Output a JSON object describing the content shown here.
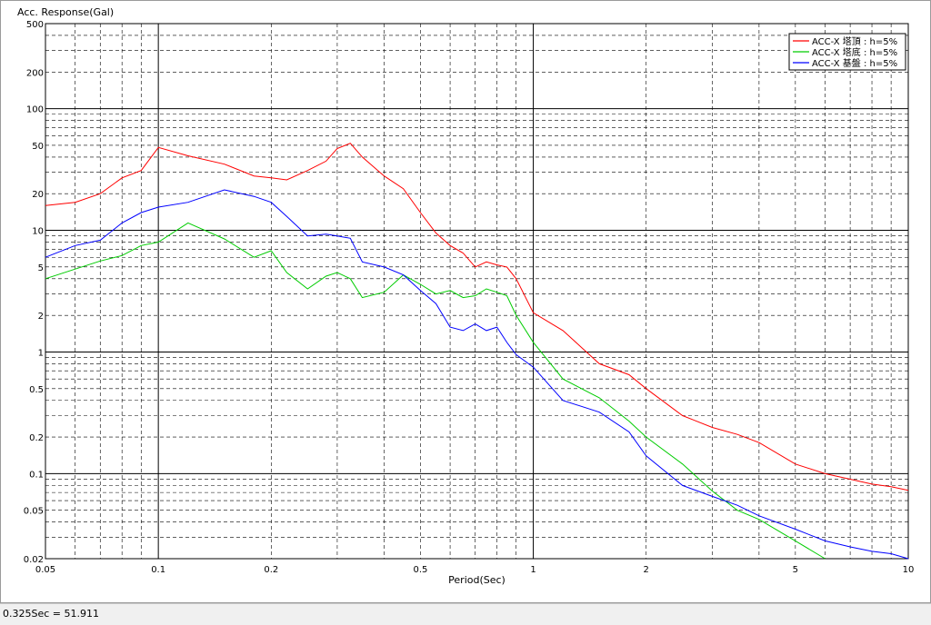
{
  "status_bar": {
    "text": "0.325Sec = 51.911"
  },
  "colors": {
    "grid": "#000000",
    "plot_bg": "#ffffff"
  },
  "chart_data": {
    "type": "line",
    "title": "",
    "xlabel": "Period(Sec)",
    "ylabel": "Acc. Response(Gal)",
    "x_scale": "log",
    "y_scale": "log",
    "xlim": [
      0.05,
      10
    ],
    "ylim": [
      0.02,
      500
    ],
    "x_ticks": [
      {
        "value": 0.05,
        "label": "0.05"
      },
      {
        "value": 0.1,
        "label": "0.1"
      },
      {
        "value": 0.2,
        "label": "0.2"
      },
      {
        "value": 0.5,
        "label": "0.5"
      },
      {
        "value": 1,
        "label": "1"
      },
      {
        "value": 2,
        "label": "2"
      },
      {
        "value": 5,
        "label": "5"
      },
      {
        "value": 10,
        "label": "10"
      }
    ],
    "y_ticks": [
      {
        "value": 500,
        "label": "500"
      },
      {
        "value": 200,
        "label": "200"
      },
      {
        "value": 100,
        "label": "100"
      },
      {
        "value": 50,
        "label": "50"
      },
      {
        "value": 20,
        "label": "20"
      },
      {
        "value": 10,
        "label": "10"
      },
      {
        "value": 5,
        "label": "5"
      },
      {
        "value": 2,
        "label": "2"
      },
      {
        "value": 1,
        "label": "1"
      },
      {
        "value": 0.5,
        "label": "0.5"
      },
      {
        "value": 0.2,
        "label": "0.2"
      },
      {
        "value": 0.1,
        "label": "0.1"
      },
      {
        "value": 0.05,
        "label": "0.05"
      },
      {
        "value": 0.02,
        "label": "0.02"
      }
    ],
    "grid": true,
    "legend_position": "top-right",
    "series": [
      {
        "name": "ACC-X 塔頂 : h=5%",
        "color": "#ff0000",
        "x": [
          0.05,
          0.06,
          0.07,
          0.08,
          0.09,
          0.1,
          0.12,
          0.15,
          0.18,
          0.2,
          0.22,
          0.25,
          0.28,
          0.3,
          0.325,
          0.35,
          0.4,
          0.45,
          0.5,
          0.55,
          0.6,
          0.65,
          0.7,
          0.75,
          0.8,
          0.85,
          0.9,
          1.0,
          1.2,
          1.5,
          1.8,
          2.0,
          2.5,
          3.0,
          3.5,
          4.0,
          5.0,
          6.0,
          7.0,
          8.0,
          9.0,
          10.0
        ],
        "y": [
          16,
          17,
          20,
          27,
          31,
          48,
          41,
          35,
          28,
          27,
          26,
          31,
          37,
          47,
          51.911,
          40,
          28,
          22,
          14,
          9.5,
          7.5,
          6.5,
          5.0,
          5.5,
          5.2,
          5.0,
          4.0,
          2.1,
          1.5,
          0.8,
          0.65,
          0.5,
          0.3,
          0.24,
          0.21,
          0.18,
          0.12,
          0.1,
          0.09,
          0.082,
          0.078,
          0.073
        ]
      },
      {
        "name": "ACC-X 塔底 : h=5%",
        "color": "#00cc00",
        "x": [
          0.05,
          0.06,
          0.07,
          0.08,
          0.09,
          0.1,
          0.12,
          0.15,
          0.18,
          0.2,
          0.22,
          0.25,
          0.28,
          0.3,
          0.325,
          0.35,
          0.4,
          0.45,
          0.5,
          0.55,
          0.6,
          0.65,
          0.7,
          0.75,
          0.8,
          0.85,
          0.9,
          1.0,
          1.2,
          1.5,
          1.8,
          2.0,
          2.5,
          3.0,
          3.5,
          4.0,
          5.0,
          6.0
        ],
        "y": [
          4.0,
          4.8,
          5.6,
          6.2,
          7.5,
          8.0,
          11.5,
          8.5,
          6.0,
          6.8,
          4.5,
          3.3,
          4.2,
          4.5,
          4.0,
          2.8,
          3.1,
          4.3,
          3.6,
          3.0,
          3.2,
          2.8,
          2.9,
          3.3,
          3.1,
          2.9,
          2.0,
          1.2,
          0.6,
          0.42,
          0.27,
          0.2,
          0.12,
          0.072,
          0.05,
          0.042,
          0.028,
          0.02
        ]
      },
      {
        "name": "ACC-X 基盤 : h=5%",
        "color": "#0000ff",
        "x": [
          0.05,
          0.06,
          0.07,
          0.08,
          0.09,
          0.1,
          0.12,
          0.15,
          0.18,
          0.2,
          0.22,
          0.25,
          0.28,
          0.3,
          0.325,
          0.35,
          0.4,
          0.45,
          0.5,
          0.55,
          0.6,
          0.65,
          0.7,
          0.75,
          0.8,
          0.85,
          0.9,
          1.0,
          1.2,
          1.5,
          1.8,
          2.0,
          2.5,
          3.0,
          3.5,
          4.0,
          5.0,
          6.0,
          7.0,
          8.0,
          9.0,
          10.0
        ],
        "y": [
          6.0,
          7.5,
          8.3,
          11.5,
          14.0,
          15.5,
          17.0,
          21.5,
          19.0,
          17.0,
          13.0,
          9.0,
          9.3,
          9.0,
          8.6,
          5.5,
          5.0,
          4.3,
          3.2,
          2.5,
          1.6,
          1.5,
          1.7,
          1.5,
          1.6,
          1.2,
          0.95,
          0.75,
          0.4,
          0.32,
          0.22,
          0.14,
          0.08,
          0.065,
          0.055,
          0.045,
          0.035,
          0.028,
          0.025,
          0.023,
          0.022,
          0.02
        ]
      }
    ]
  }
}
